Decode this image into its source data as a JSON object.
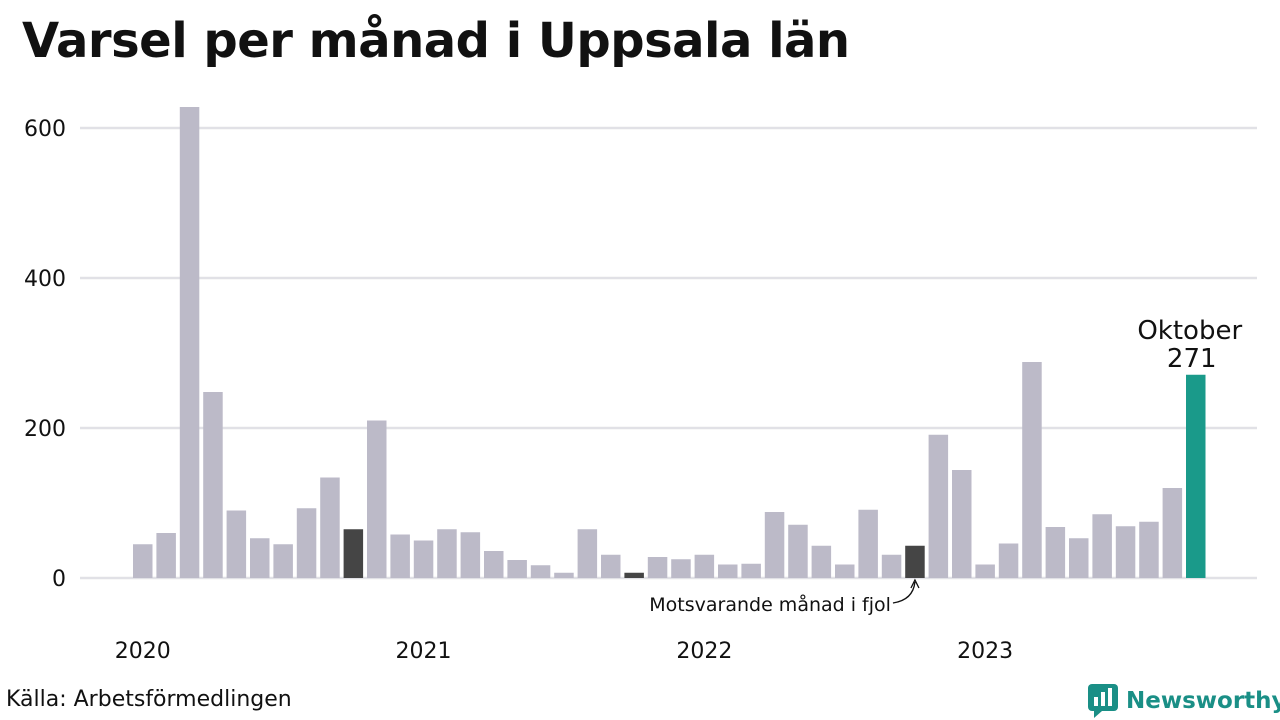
{
  "title": "Varsel per månad i Uppsala län",
  "source": "Källa: Arbetsförmedlingen",
  "brand": {
    "name": "Newsworthy",
    "icon": "newsworthy-logo-icon"
  },
  "colors": {
    "bar": "#bcbac8",
    "comparison": "#454545",
    "current": "#1a9a8a",
    "grid": "#e1e1e6"
  },
  "chart_data": {
    "type": "bar",
    "title": "Varsel per månad i Uppsala län",
    "xlabel": "",
    "ylabel": "",
    "ylim": [
      0,
      650
    ],
    "yticks": [
      "0",
      "200",
      "400",
      "600"
    ],
    "xtick_labels": [
      "2020",
      "2021",
      "2022",
      "2023"
    ],
    "grid": true,
    "start": "2020-01",
    "end": "2023-10",
    "values": [
      45,
      60,
      628,
      248,
      90,
      53,
      45,
      93,
      134,
      65,
      210,
      58,
      50,
      65,
      61,
      36,
      24,
      17,
      7,
      65,
      31,
      7,
      28,
      25,
      31,
      18,
      19,
      88,
      71,
      43,
      18,
      91,
      31,
      43,
      191,
      144,
      18,
      46,
      288,
      68,
      53,
      85,
      69,
      75,
      120,
      271
    ],
    "highlight_last_label": "Oktober",
    "highlight_last_value": "271",
    "comparison_annotation": "Motsvarande månad i fjol"
  }
}
